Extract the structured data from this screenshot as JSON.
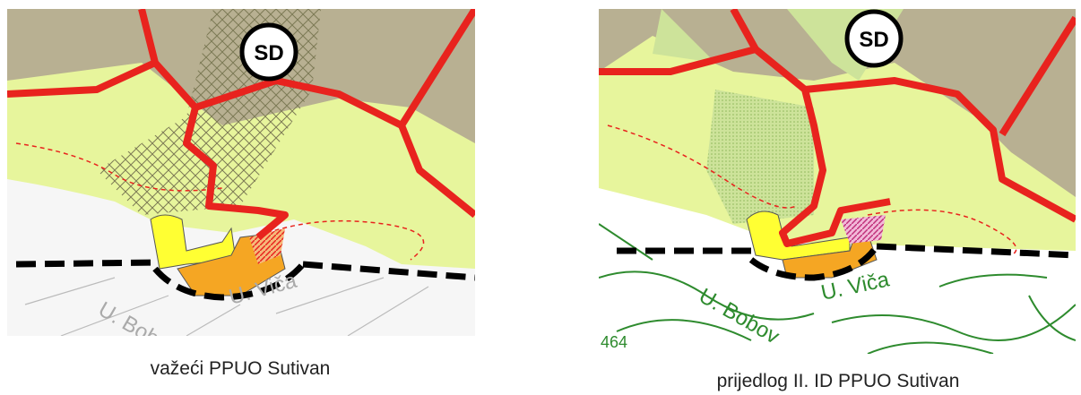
{
  "panels": [
    {
      "caption": "važeći PPUO Sutivan",
      "badge": "SD",
      "place_labels": [
        "U. Viča",
        "U. Bob"
      ]
    },
    {
      "caption": "prijedlog II. ID PPUO Sutivan",
      "badge": "SD",
      "place_labels": [
        "U. Viča",
        "U. Bobov",
        "464"
      ]
    }
  ]
}
